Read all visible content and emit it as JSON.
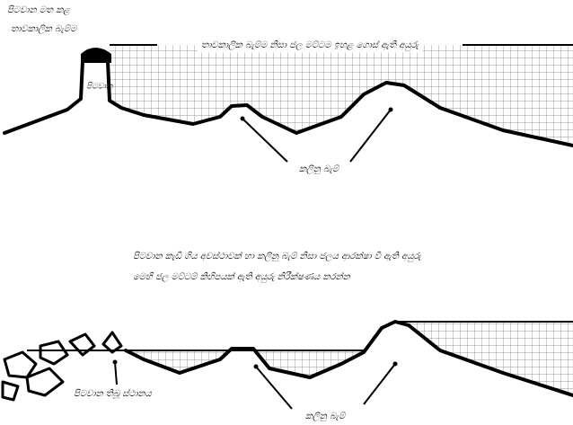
{
  "top_diagram": {
    "dam_label": [
      "පිටවාන මත කළ",
      "තාවකාලික බැම්ම"
    ],
    "spillway_label": "පිටවාන",
    "water_level_label": "තාවකාලික බැම්ම නිසා ජල මට්ටම ඉහළ ගොස් ඇති අයුරු",
    "bunds_label": "කලිනු බැම්"
  },
  "caption": [
    "පිටවාන කැඩී ගිය අවස්ථාවක් හා කලිනු බැම් නිසා ජලය ආරක්ෂා වී ඇති අයුරු",
    "මෙහි ජල මට්ටම් කිහිපයක් ඇති අයුරු නිරීක්ෂණය කරන්න"
  ],
  "bottom_diagram": {
    "spillway_site_label": "පිටවාන තිබූ ස්ථානය",
    "bunds_label": "කලිනු බැම්"
  }
}
